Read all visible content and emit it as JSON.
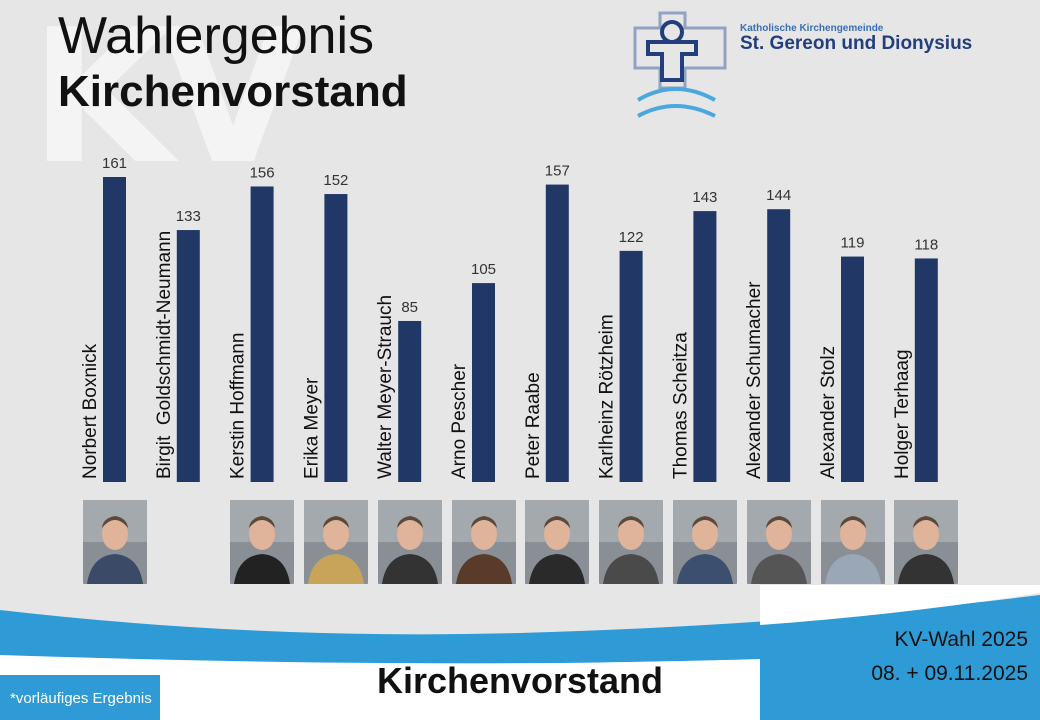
{
  "header": {
    "watermark": "KV",
    "title": "Wahlergebnis",
    "subtitle": "Kirchenvorstand"
  },
  "org": {
    "line1": "Katholische Kirchengemeinde",
    "line2": "St. Gereon und Dionysius"
  },
  "footer": {
    "title": "Kirchenvorstand",
    "event": "KV-Wahl 2025",
    "dates": "08. + 09.11.2025",
    "note": "*vorläufiges Ergebnis"
  },
  "colors": {
    "bar": "#213766",
    "wave": "#2e9bd6",
    "background": "#e6e6e6"
  },
  "chart_data": {
    "type": "bar",
    "title": "",
    "xlabel": "",
    "ylabel": "",
    "categories": [
      "Norbert Boxnick",
      "Birgit  Goldschmidt-Neumann",
      "Kerstin Hoffmann",
      "Erika Meyer",
      "Walter Meyer-Strauch",
      "Arno Pescher",
      "Peter Raabe",
      "Karlheinz Rötzheim",
      "Thomas Scheitza",
      "Alexander Schumacher",
      "Alexander Stolz",
      "Holger Terhaag"
    ],
    "values": [
      161,
      133,
      156,
      152,
      85,
      105,
      157,
      122,
      143,
      144,
      119,
      118
    ],
    "photos": [
      true,
      false,
      true,
      true,
      true,
      true,
      true,
      true,
      true,
      true,
      true,
      true
    ],
    "grid": false,
    "legend": "none"
  }
}
